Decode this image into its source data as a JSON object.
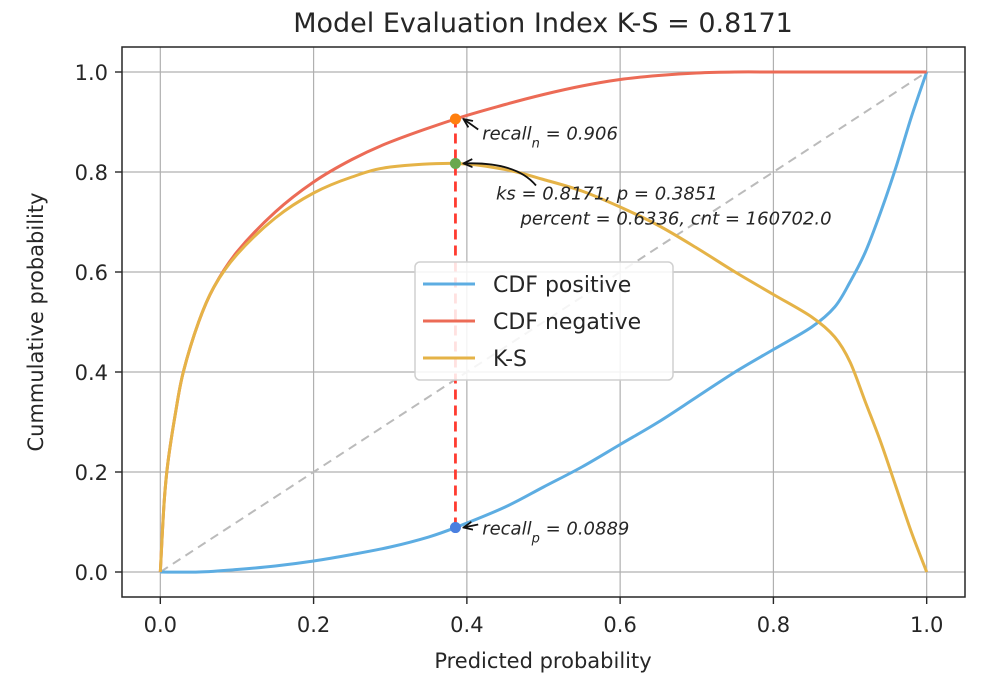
{
  "chart_data": {
    "type": "line",
    "title": "Model Evaluation Index K-S = 0.8171",
    "xlabel": "Predicted probability",
    "ylabel": "Cummulative probability",
    "xlim": [
      -0.05,
      1.05
    ],
    "ylim": [
      -0.05,
      1.05
    ],
    "xticks": [
      0.0,
      0.2,
      0.4,
      0.6,
      0.8,
      1.0
    ],
    "yticks": [
      0.0,
      0.2,
      0.4,
      0.6,
      0.8,
      1.0
    ],
    "xtick_labels": [
      "0.0",
      "0.2",
      "0.4",
      "0.6",
      "0.8",
      "1.0"
    ],
    "ytick_labels": [
      "0.0",
      "0.2",
      "0.4",
      "0.6",
      "0.8",
      "1.0"
    ],
    "grid": true,
    "legend_position": "center",
    "series": [
      {
        "name": "CDF positive",
        "color": "#5dade2",
        "x": [
          0.0,
          0.05,
          0.1,
          0.15,
          0.2,
          0.25,
          0.3,
          0.35,
          0.3851,
          0.45,
          0.5,
          0.55,
          0.6,
          0.65,
          0.7,
          0.75,
          0.8,
          0.85,
          0.88,
          0.9,
          0.92,
          0.94,
          0.96,
          0.98,
          1.0
        ],
        "y": [
          0.0,
          0.0,
          0.005,
          0.012,
          0.022,
          0.035,
          0.05,
          0.07,
          0.0889,
          0.13,
          0.17,
          0.21,
          0.255,
          0.3,
          0.35,
          0.4,
          0.445,
          0.49,
          0.53,
          0.58,
          0.64,
          0.72,
          0.81,
          0.91,
          1.0
        ]
      },
      {
        "name": "CDF negative",
        "color": "#ec6b56",
        "x": [
          0.0,
          0.005,
          0.01,
          0.02,
          0.03,
          0.05,
          0.07,
          0.1,
          0.15,
          0.2,
          0.25,
          0.3,
          0.3851,
          0.45,
          0.5,
          0.55,
          0.6,
          0.65,
          0.7,
          0.75,
          0.8,
          0.85,
          0.9,
          0.95,
          1.0
        ],
        "y": [
          0.0,
          0.14,
          0.22,
          0.32,
          0.4,
          0.5,
          0.57,
          0.64,
          0.72,
          0.78,
          0.825,
          0.86,
          0.906,
          0.935,
          0.955,
          0.972,
          0.985,
          0.993,
          0.998,
          1.0,
          1.0,
          1.0,
          1.0,
          1.0,
          1.0
        ]
      },
      {
        "name": "K-S",
        "color": "#e5b347",
        "x": [
          0.0,
          0.005,
          0.01,
          0.02,
          0.03,
          0.05,
          0.07,
          0.1,
          0.15,
          0.2,
          0.25,
          0.3,
          0.3851,
          0.45,
          0.5,
          0.55,
          0.6,
          0.65,
          0.7,
          0.75,
          0.8,
          0.85,
          0.88,
          0.9,
          0.92,
          0.94,
          0.96,
          0.98,
          1.0
        ],
        "y": [
          0.0,
          0.14,
          0.22,
          0.32,
          0.4,
          0.5,
          0.57,
          0.635,
          0.708,
          0.758,
          0.79,
          0.81,
          0.8171,
          0.805,
          0.785,
          0.762,
          0.73,
          0.693,
          0.648,
          0.6,
          0.555,
          0.51,
          0.47,
          0.42,
          0.34,
          0.26,
          0.17,
          0.08,
          0.0
        ]
      }
    ],
    "reference_line": {
      "x": [
        0.0,
        1.0
      ],
      "y": [
        0.0,
        1.0
      ],
      "color": "#bbbbbb",
      "style": "dashed"
    },
    "ks_line": {
      "x": 0.3851,
      "y": [
        0.0889,
        0.906
      ],
      "color": "#ff3b30",
      "style": "dashed"
    },
    "markers": [
      {
        "x": 0.3851,
        "y": 0.906,
        "color": "#ff7f0e"
      },
      {
        "x": 0.3851,
        "y": 0.8171,
        "color": "#6aa84f"
      },
      {
        "x": 0.3851,
        "y": 0.0889,
        "color": "#4a7fe0"
      }
    ],
    "annotations": [
      {
        "text": "recall_n = 0.906",
        "point": [
          0.3851,
          0.906
        ],
        "text_at": [
          0.42,
          0.865
        ]
      },
      {
        "text": "ks = 0.8171, p = 0.3851",
        "point": [
          0.3851,
          0.8171
        ],
        "text_at": [
          0.438,
          0.745
        ]
      },
      {
        "text": "percent = 0.6336, cnt = 160702.0",
        "point": null,
        "text_at": [
          0.47,
          0.695
        ]
      },
      {
        "text": "recall_p = 0.0889",
        "point": [
          0.3851,
          0.0889
        ],
        "text_at": [
          0.42,
          0.075
        ]
      }
    ]
  }
}
